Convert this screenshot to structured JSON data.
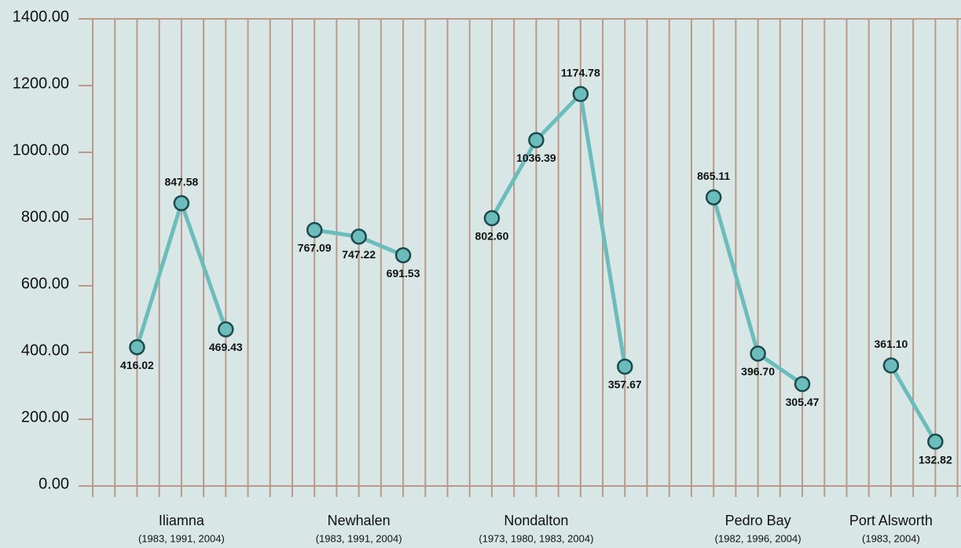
{
  "chart_data": {
    "type": "line",
    "ylim": [
      0,
      1400
    ],
    "yticks": [
      {
        "value": 0,
        "label": "0.00"
      },
      {
        "value": 200,
        "label": "200.00"
      },
      {
        "value": 400,
        "label": "400.00"
      },
      {
        "value": 600,
        "label": "600.00"
      },
      {
        "value": 800,
        "label": "800.00"
      },
      {
        "value": 1000,
        "label": "1000.00"
      },
      {
        "value": 1200,
        "label": "1200.00"
      },
      {
        "value": 1400,
        "label": "1400.00"
      }
    ],
    "color": "#6cbcbc",
    "grid": true,
    "groups": [
      {
        "name": "Iliamna",
        "years": "(1983, 1991, 2004)",
        "values": [
          416.02,
          847.58,
          469.43
        ],
        "value_labels": [
          "416.02",
          "847.58",
          "469.43"
        ]
      },
      {
        "name": "Newhalen",
        "years": "(1983, 1991, 2004)",
        "values": [
          767.09,
          747.22,
          691.53
        ],
        "value_labels": [
          "767.09",
          "747.22",
          "691.53"
        ]
      },
      {
        "name": "Nondalton",
        "years": "(1973, 1980, 1983, 2004)",
        "values": [
          802.6,
          1036.39,
          1174.78,
          357.67
        ],
        "value_labels": [
          "802.60",
          "1036.39",
          "1174.78",
          "357.67"
        ]
      },
      {
        "name": "Pedro Bay",
        "years": "(1982, 1996, 2004)",
        "values": [
          865.11,
          396.7,
          305.47
        ],
        "value_labels": [
          "865.11",
          "396.70",
          "305.47"
        ]
      },
      {
        "name": "Port Alsworth",
        "years": "(1983, 2004)",
        "values": [
          361.1,
          132.82
        ],
        "value_labels": [
          "361.10",
          "132.82"
        ]
      }
    ]
  }
}
